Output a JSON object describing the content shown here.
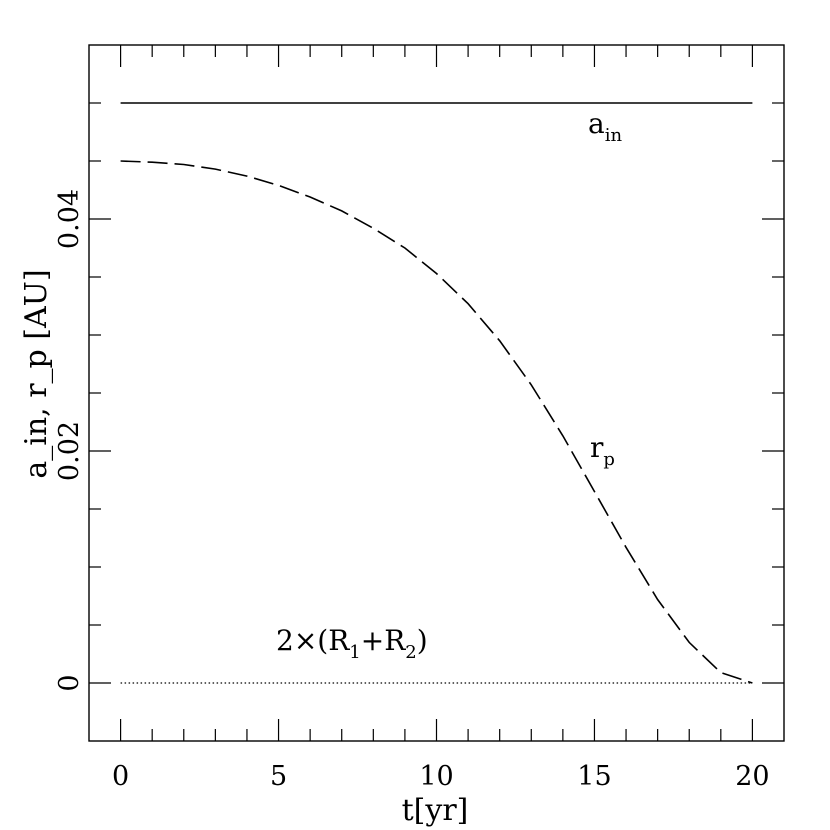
{
  "chart_data": {
    "type": "line",
    "xlabel": "t[yr]",
    "ylabel": "a_in, r_p [AU]",
    "xlim": [
      -1,
      21
    ],
    "ylim": [
      -0.005,
      0.055
    ],
    "xticks": [
      "0",
      "5",
      "10",
      "15",
      "20"
    ],
    "yticks": [
      "0",
      "0.02",
      "0.04"
    ],
    "grid": false,
    "series": [
      {
        "name": "a_in",
        "style": "solid",
        "x": [
          0,
          20
        ],
        "y": [
          0.05,
          0.05
        ]
      },
      {
        "name": "r_p",
        "style": "dashed",
        "x": [
          0,
          1,
          2,
          3,
          4,
          5,
          6,
          7,
          8,
          9,
          10,
          11,
          12,
          13,
          14,
          15,
          16,
          17,
          18,
          19,
          20
        ],
        "y": [
          0.045,
          0.0449,
          0.0447,
          0.0443,
          0.0437,
          0.0429,
          0.0419,
          0.0407,
          0.0392,
          0.0375,
          0.0353,
          0.0327,
          0.0295,
          0.0257,
          0.0213,
          0.0165,
          0.0117,
          0.0072,
          0.0035,
          0.0009,
          0.0
        ]
      },
      {
        "name": "2×(R1+R2)",
        "style": "dotted",
        "x": [
          0,
          20
        ],
        "y": [
          0.0,
          0.0
        ]
      }
    ],
    "annotations": {
      "a_in": {
        "main": "a",
        "sub": "in"
      },
      "r_p": {
        "main": "r",
        "sub": "p"
      },
      "radii": {
        "pre": "2×(R",
        "sub1": "1",
        "mid": "+R",
        "sub2": "2",
        "post": ")"
      }
    }
  }
}
